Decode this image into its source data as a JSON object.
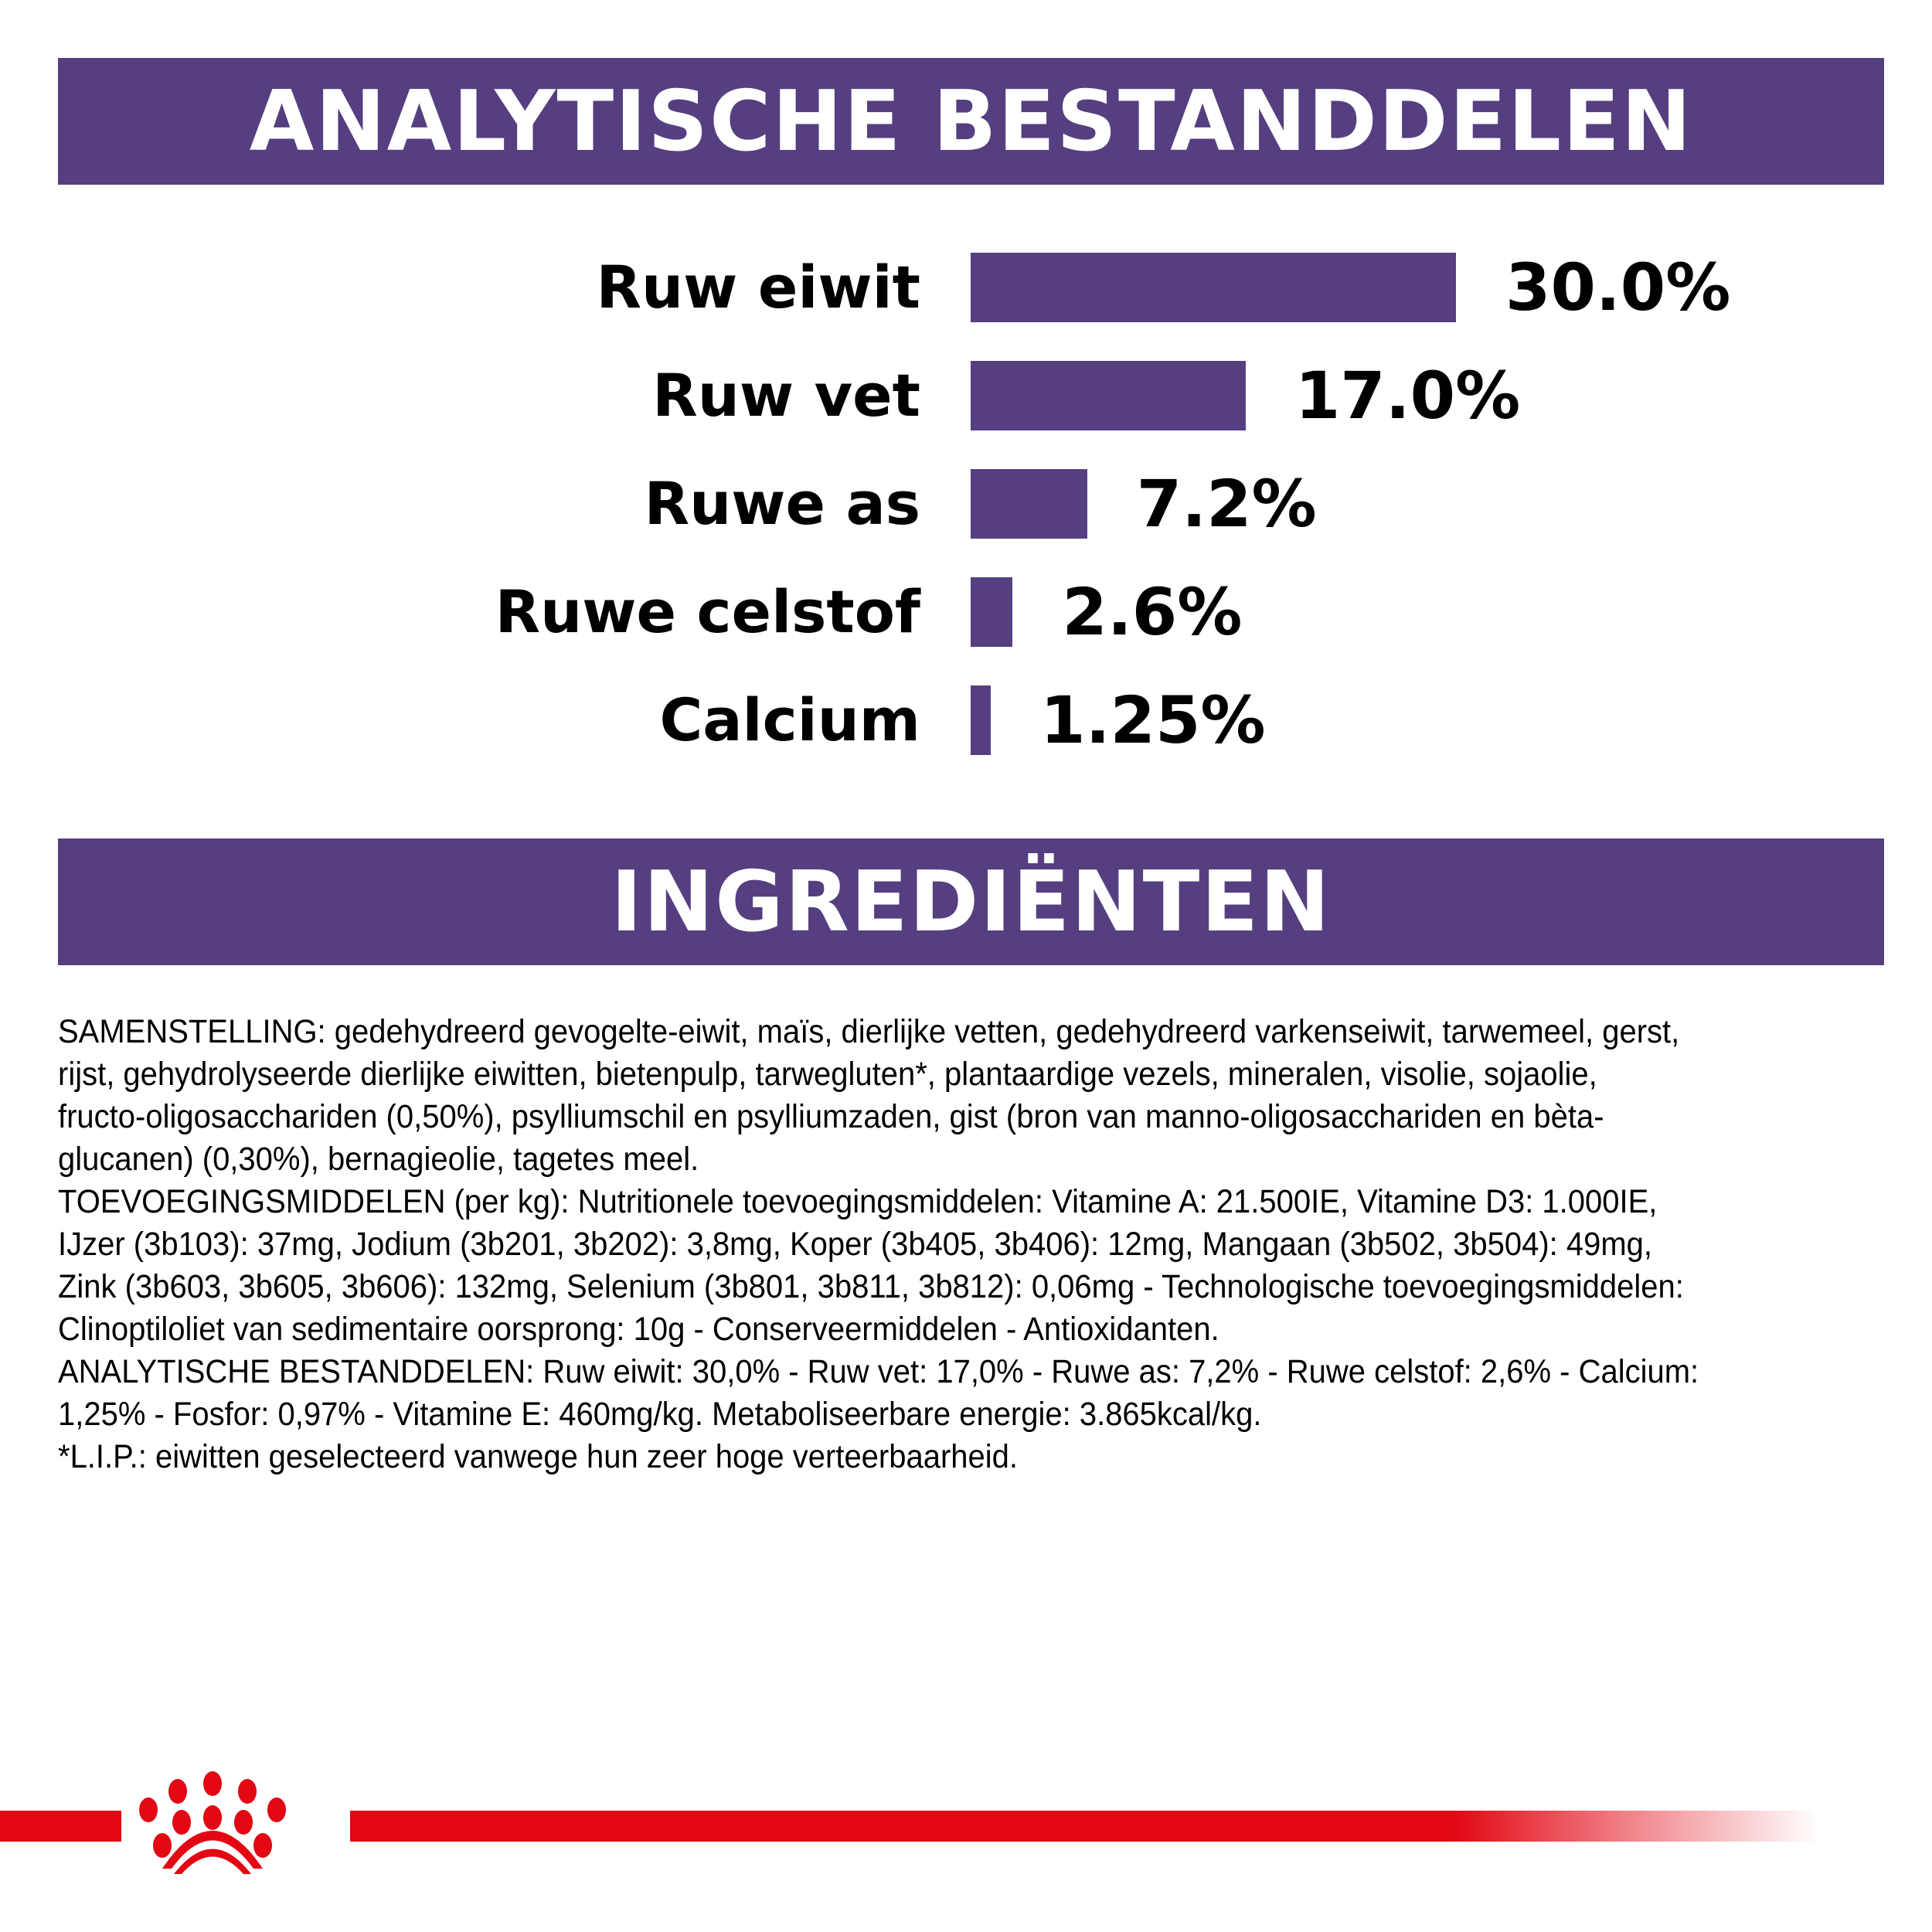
{
  "header_analytic": {
    "title": "ANALYTISCHE BESTANDDELEN"
  },
  "chart_data": {
    "type": "bar",
    "orientation": "horizontal",
    "categories": [
      "Ruw eiwit",
      "Ruw vet",
      "Ruwe as",
      "Ruwe celstof",
      "Calcium"
    ],
    "values": [
      30.0,
      17.0,
      7.2,
      2.6,
      1.25
    ],
    "value_labels": [
      "30.0%",
      "17.0%",
      "7.2%",
      "2.6%",
      "1.25%"
    ],
    "unit": "%",
    "bar_color": "#553f80",
    "grid": false
  },
  "header_ingredients": {
    "title": "INGREDIËNTEN"
  },
  "ingredients": {
    "lines": [
      "SAMENSTELLING: gedehydreerd gevogelte-eiwit, maïs, dierlijke vetten, gedehydreerd varkenseiwit, tarwemeel, gerst,",
      "rijst, gehydrolyseerde dierlijke eiwitten, bietenpulp, tarwegluten*, plantaardige vezels, mineralen, visolie, sojaolie,",
      "fructo-oligosacchariden (0,50%), psylliumschil en psylliumzaden, gist (bron van manno-oligosacchariden en bèta-",
      "glucanen) (0,30%), bernagieolie, tagetes meel.",
      "TOEVOEGINGSMIDDELEN (per kg): Nutritionele toevoegingsmiddelen: Vitamine A: 21.500IE, Vitamine D3: 1.000IE,",
      "IJzer (3b103): 37mg, Jodium (3b201, 3b202): 3,8mg, Koper (3b405, 3b406): 12mg, Mangaan (3b502, 3b504): 49mg,",
      "Zink (3b603, 3b605, 3b606): 132mg, Selenium (3b801, 3b811, 3b812): 0,06mg - Technologische toevoegingsmiddelen:",
      "Clinoptiloliet van sedimentaire oorsprong: 10g - Conserveermiddelen - Antioxidanten.",
      "ANALYTISCHE BESTANDDELEN: Ruw eiwit: 30,0% - Ruw vet: 17,0% - Ruwe as: 7,2% - Ruwe celstof: 2,6% - Calcium:",
      "1,25% - Fosfor: 0,97% - Vitamine E: 460mg/kg. Metaboliseerbare energie: 3.865kcal/kg.",
      "*L.I.P.: eiwitten geselecteerd vanwege hun zeer hoge verteerbaarheid."
    ]
  },
  "footer": {
    "logo": "royal-canin-crown-logo",
    "band_color": "#e30613"
  }
}
